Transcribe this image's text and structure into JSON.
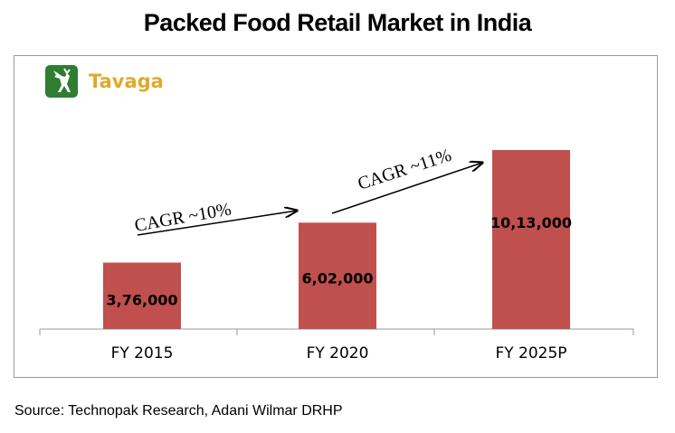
{
  "chart_data": {
    "type": "bar",
    "title": "Packed Food Retail Market in India",
    "categories": [
      "FY 2015",
      "FY 2020",
      "FY 2025P"
    ],
    "values": [
      376000,
      602000,
      1013000
    ],
    "value_labels": [
      "3,76,000",
      "6,02,000",
      "10,13,000"
    ],
    "ylim": [
      0,
      1013000
    ],
    "xlabel": "",
    "ylabel": "",
    "bar_color": "#c0504d",
    "annotations": [
      {
        "text": "CAGR ~10%",
        "from": "FY 2015",
        "to": "FY 2020"
      },
      {
        "text": "CAGR ~11%",
        "from": "FY 2020",
        "to": "FY 2025P"
      }
    ]
  },
  "brand": {
    "name": "Tavaga",
    "logo_color": "#2e7d32",
    "text_color": "#e2a82b"
  },
  "source": "Source: Technopak Research, Adani Wilmar DRHP"
}
